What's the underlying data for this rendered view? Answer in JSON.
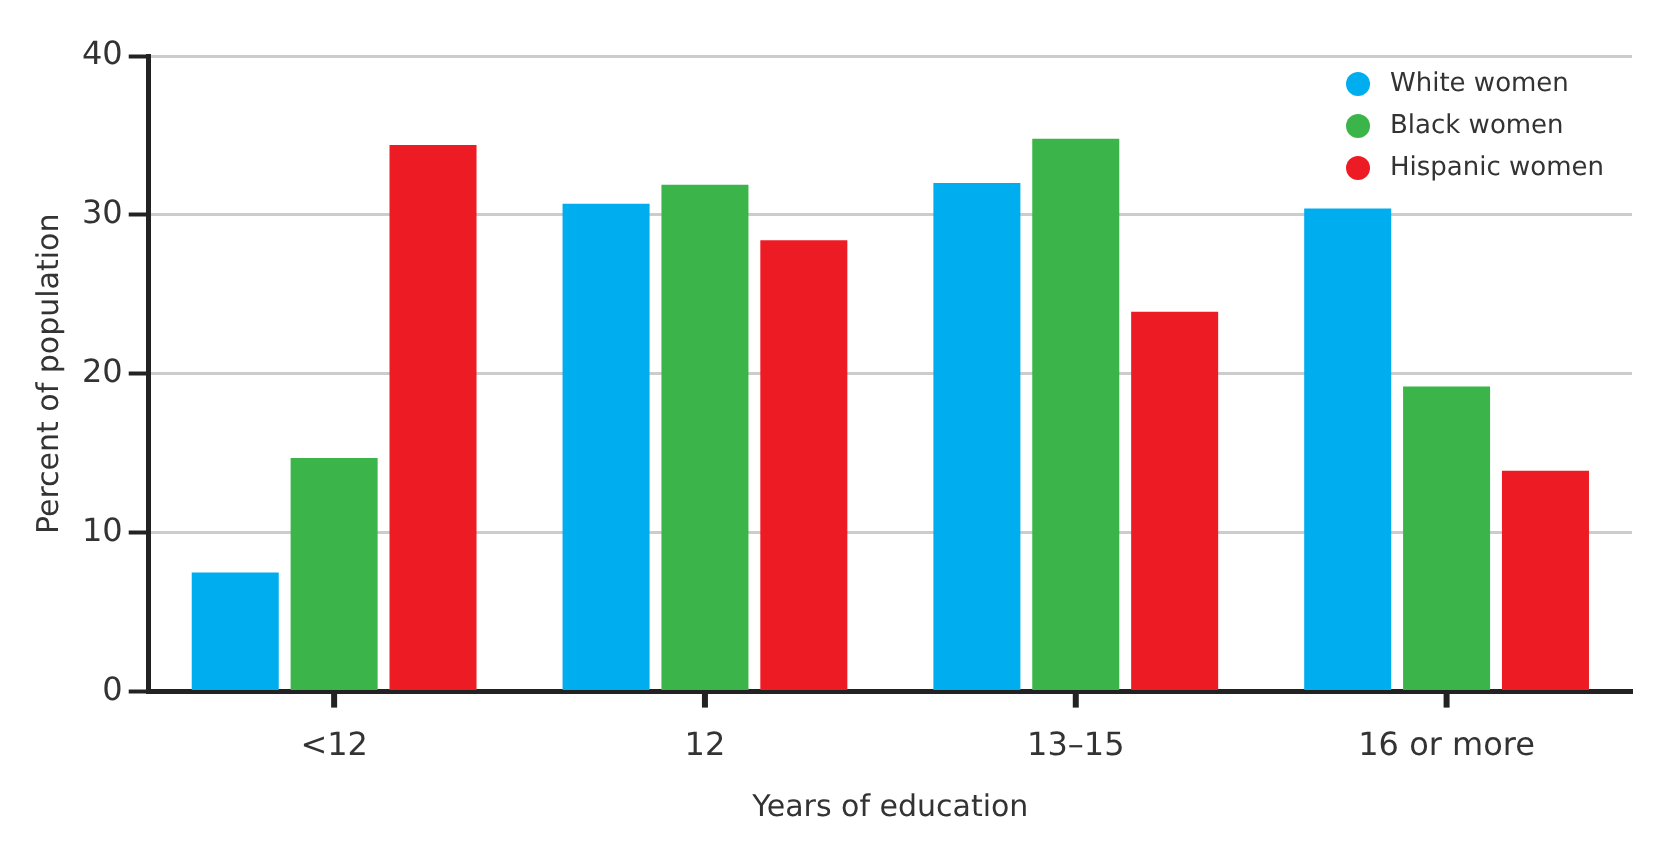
{
  "chart_data": {
    "type": "bar",
    "xlabel": "Years of education",
    "ylabel": "Percent of population",
    "categories": [
      "<12",
      "12",
      "13–15",
      "16 or more"
    ],
    "series": [
      {
        "name": "White women",
        "color": "#00aeef",
        "values": [
          7.5,
          30.7,
          32.0,
          30.4
        ]
      },
      {
        "name": "Black women",
        "color": "#3bb54a",
        "values": [
          14.7,
          31.9,
          34.8,
          19.2
        ]
      },
      {
        "name": "Hispanic women",
        "color": "#ed1c24",
        "values": [
          34.4,
          28.4,
          23.9,
          13.9
        ]
      }
    ],
    "ylim": [
      0,
      40
    ],
    "yticks": [
      0,
      10,
      20,
      30,
      40
    ],
    "grid": "y",
    "legend": "top right"
  }
}
